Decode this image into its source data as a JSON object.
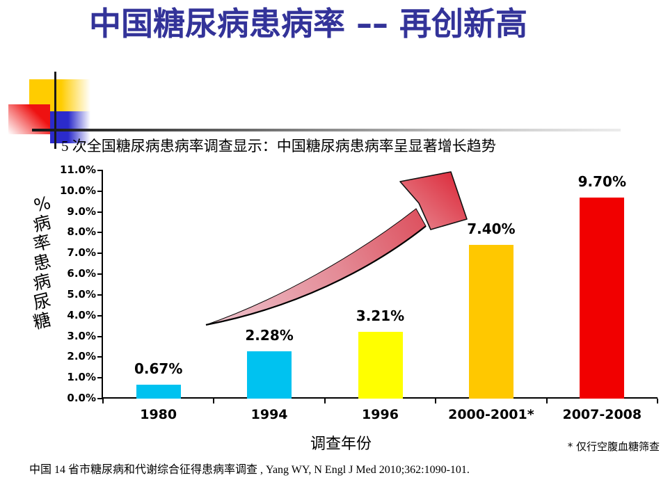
{
  "slide": {
    "title": "中国糖尿病患病率 –– 再创新高",
    "title_color": "#333399",
    "subtitle": "5 次全国糖尿病患病率调查显示：中国糖尿病患病率呈显著增长趋势",
    "citation": "中国 14 省市糖尿病和代谢综合征得患病率调查 , Yang WY, N Engl J Med 2010;362:1090-101.",
    "decoration_colors": {
      "yellow_square": "#FFCC00",
      "red_square": "#EE1111",
      "blue_square": "#2B2BCB",
      "cross_lines": "#1a1a1a"
    }
  },
  "chart_data": {
    "type": "bar",
    "title": "",
    "categories": [
      "1980",
      "1994",
      "1996",
      "2000-2001*",
      "2007-2008"
    ],
    "values": [
      0.67,
      2.28,
      3.21,
      7.4,
      9.7
    ],
    "value_labels": [
      "0.67%",
      "2.28%",
      "3.21%",
      "7.40%",
      "9.70%"
    ],
    "bar_colors": [
      "#00C2F0",
      "#00C2F0",
      "#FFFF00",
      "#FFC800",
      "#F10000"
    ],
    "xlabel": "调查年份",
    "ylabel": "糖尿病患率病 %",
    "ylabel_chars_top_to_bottom": [
      "%",
      "病",
      "率",
      "患",
      "病",
      "尿",
      "糖"
    ],
    "ylim": [
      0,
      11
    ],
    "ytick_step": 1.0,
    "ytick_labels": [
      "0.0%",
      "1.0%",
      "2.0%",
      "3.0%",
      "4.0%",
      "5.0%",
      "6.0%",
      "7.0%",
      "8.0%",
      "9.0%",
      "10.0%",
      "11.0%"
    ],
    "grid": false,
    "legend": null,
    "footnote": "* 仅行空腹血糖筛查",
    "annotation": "rising trend arrow from 1980 bar toward 2000-2001 bar",
    "arrow_colors": {
      "tail": "#EBB9C4",
      "head": "#DD3040",
      "outline": "#000000"
    }
  }
}
